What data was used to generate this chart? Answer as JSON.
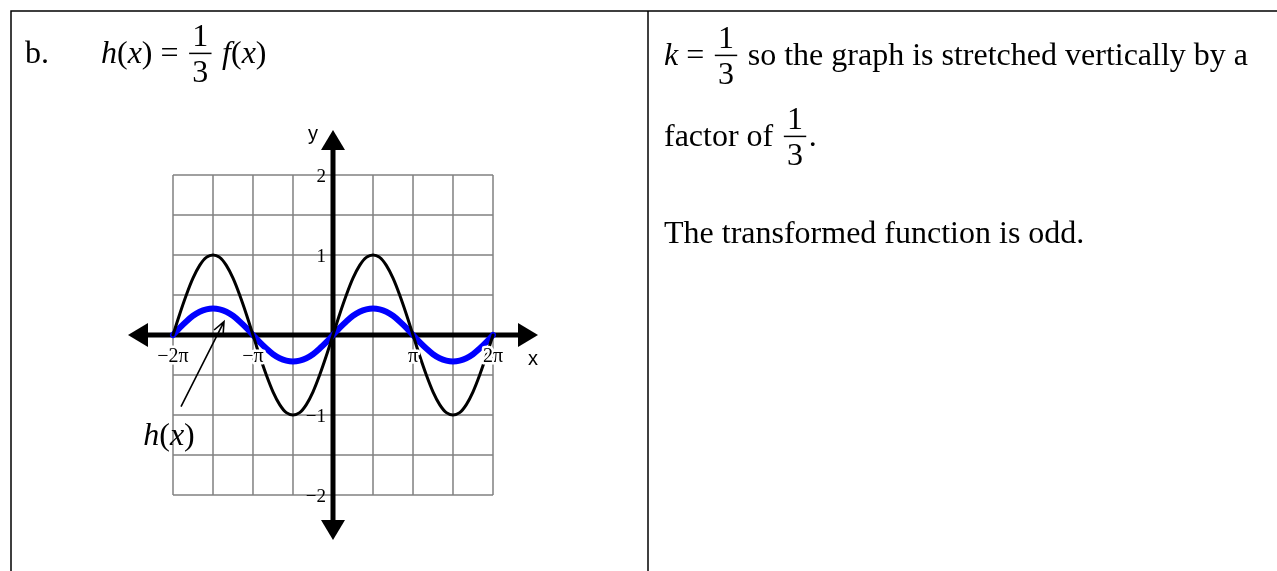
{
  "chart_data": {
    "type": "line",
    "title": "b.\th(x) = 1/3 f(x)",
    "xlabel": "x",
    "ylabel": "y",
    "x": [
      -6.283,
      -6.021,
      -5.76,
      -5.498,
      -5.236,
      -4.974,
      -4.712,
      -4.451,
      -4.189,
      -3.927,
      -3.665,
      -3.403,
      -3.142,
      -2.88,
      -2.618,
      -2.356,
      -2.094,
      -1.833,
      -1.571,
      -1.309,
      -1.047,
      -0.785,
      -0.524,
      -0.262,
      0,
      0.262,
      0.524,
      0.785,
      1.047,
      1.309,
      1.571,
      1.833,
      2.094,
      2.356,
      2.618,
      2.88,
      3.142,
      3.403,
      3.665,
      3.927,
      4.189,
      4.451,
      4.712,
      4.974,
      5.236,
      5.498,
      5.76,
      6.021,
      6.283
    ],
    "series": [
      {
        "name": "h(x)",
        "color": "#0000ff",
        "values": [
          0,
          0.09,
          0.17,
          0.24,
          0.29,
          0.32,
          0.33,
          0.32,
          0.29,
          0.24,
          0.17,
          0.09,
          0,
          -0.09,
          -0.17,
          -0.24,
          -0.29,
          -0.32,
          -0.33,
          -0.32,
          -0.29,
          -0.24,
          -0.17,
          -0.09,
          0,
          0.09,
          0.17,
          0.24,
          0.29,
          0.32,
          0.33,
          0.32,
          0.29,
          0.24,
          0.17,
          0.09,
          0,
          -0.09,
          -0.17,
          -0.24,
          -0.29,
          -0.32,
          -0.33,
          -0.32,
          -0.29,
          -0.24,
          -0.17,
          -0.09,
          0
        ]
      },
      {
        "color": "#000000",
        "values": [
          0,
          0.26,
          0.5,
          0.71,
          0.87,
          0.97,
          1,
          0.97,
          0.87,
          0.71,
          0.5,
          0.26,
          0,
          -0.26,
          -0.5,
          -0.71,
          -0.87,
          -0.97,
          -1,
          -0.97,
          -0.87,
          -0.71,
          -0.5,
          -0.26,
          0,
          0.26,
          0.5,
          0.71,
          0.87,
          0.97,
          1,
          0.97,
          0.87,
          0.71,
          0.5,
          0.26,
          0,
          -0.26,
          -0.5,
          -0.71,
          -0.87,
          -0.97,
          -1,
          -0.97,
          -0.87,
          -0.71,
          -0.5,
          -0.26,
          0
        ]
      }
    ],
    "xlim": [
      -6.283,
      6.283
    ],
    "ylim": [
      -2,
      2
    ],
    "xticks": [
      {
        "value": -6.283,
        "label": "−2π"
      },
      {
        "value": -4.712,
        "label": null
      },
      {
        "value": -3.142,
        "label": "−π"
      },
      {
        "value": -1.571,
        "label": null
      },
      {
        "value": 0,
        "label": null
      },
      {
        "value": 1.571,
        "label": null
      },
      {
        "value": 3.142,
        "label": "π"
      },
      {
        "value": 4.712,
        "label": null
      },
      {
        "value": 6.283,
        "label": "2π"
      }
    ],
    "yticks": [
      {
        "value": -2,
        "label": "−2"
      },
      {
        "value": -1.5,
        "label": null
      },
      {
        "value": -1,
        "label": "−1"
      },
      {
        "value": -0.5,
        "label": null
      },
      {
        "value": 0,
        "label": null
      },
      {
        "value": 0.5,
        "label": null
      },
      1,
      {
        "value": 1.5,
        "label": null
      },
      2
    ],
    "grid": true,
    "annotations": [
      "k = 1/3 so the graph is stretched vertically by a factor of 1/3.",
      "The transformed function is odd."
    ]
  }
}
